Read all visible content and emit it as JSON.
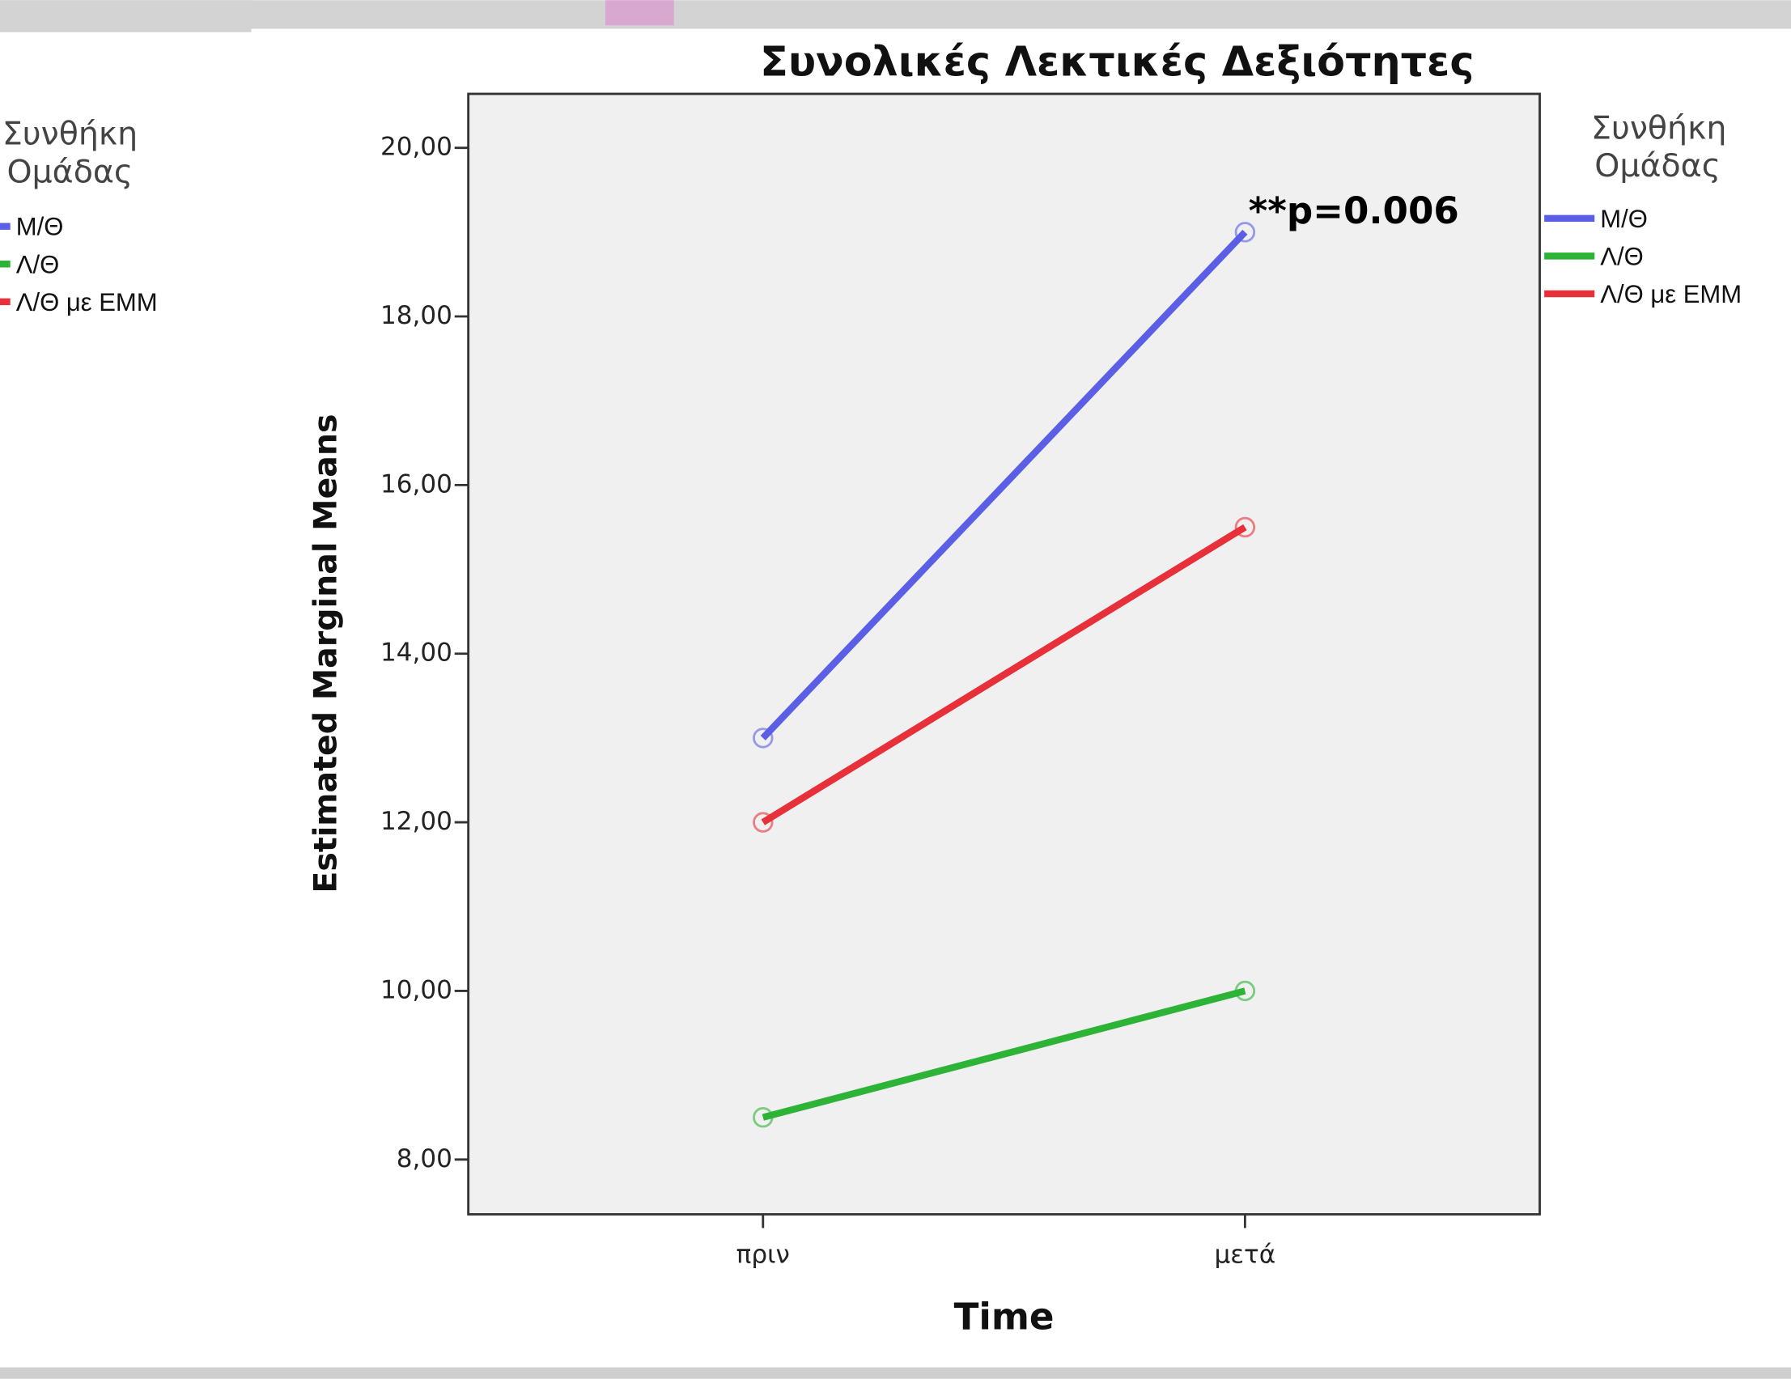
{
  "chart_data": {
    "type": "line",
    "title": "Συνολικές Λεκτικές Δεξιότητες",
    "x_label": "Time",
    "y_label": "Estimated Marginal Means",
    "legend_title": [
      "Συνθήκη",
      "Ομάδας"
    ],
    "annotation": "**p=0.006",
    "categories": [
      "πριν",
      "μετά"
    ],
    "series": [
      {
        "name": "Μ/Θ",
        "color": "#5a5fe6",
        "values": [
          13,
          19
        ]
      },
      {
        "name": "Λ/Θ",
        "color": "#2db336",
        "values": [
          8.5,
          10
        ]
      },
      {
        "name": "Λ/Θ με ΕΜΜ",
        "color": "#e8303a",
        "values": [
          12,
          15.5
        ]
      }
    ],
    "ylim": [
      7.35,
      20.64
    ],
    "yticks": [
      {
        "value": 8,
        "label": "8,00"
      },
      {
        "value": 10,
        "label": "10,00"
      },
      {
        "value": 12,
        "label": "12,00"
      },
      {
        "value": 14,
        "label": "14,00"
      },
      {
        "value": 16,
        "label": "16,00"
      },
      {
        "value": 18,
        "label": "18,00"
      },
      {
        "value": 20,
        "label": "20,00"
      }
    ],
    "legend": "right"
  }
}
